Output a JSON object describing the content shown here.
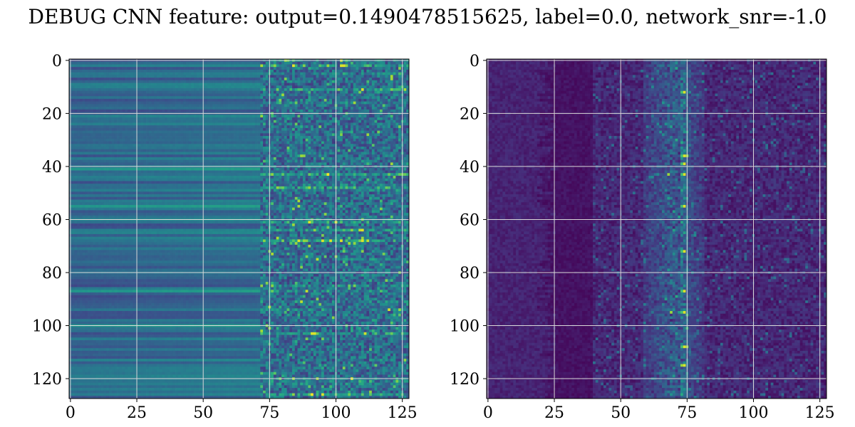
{
  "title": "DEBUG CNN feature: output=0.1490478515625, label=0.0, network_snr=-1.0",
  "chart_data": [
    {
      "type": "heatmap",
      "name": "panel-left",
      "rows": 128,
      "cols": 128,
      "colormap": "viridis",
      "xlim": [
        0,
        127
      ],
      "ylim": [
        127,
        0
      ],
      "x_ticks": [
        0,
        25,
        50,
        75,
        100,
        125
      ],
      "y_ticks": [
        0,
        20,
        40,
        60,
        80,
        100,
        120
      ],
      "x_tick_labels": [
        "0",
        "25",
        "50",
        "75",
        "100",
        "125"
      ],
      "y_tick_labels": [
        "0",
        "20",
        "40",
        "60",
        "80",
        "100",
        "120"
      ],
      "grid": true,
      "description_values": {
        "left_region_cols_0_70": "horizontal bands, mostly mid-blue/teal (~0.25-0.45)",
        "right_region_cols_75_127": "noisy, bright speckles up to yellow (~1.0)",
        "bright_rows": [
          2,
          11,
          43,
          48,
          61,
          64,
          68,
          103,
          126
        ]
      }
    },
    {
      "type": "heatmap",
      "name": "panel-right",
      "rows": 128,
      "cols": 128,
      "colormap": "viridis",
      "xlim": [
        0,
        127
      ],
      "ylim": [
        127,
        0
      ],
      "x_ticks": [
        0,
        25,
        50,
        75,
        100,
        125
      ],
      "y_ticks": [
        0,
        20,
        40,
        60,
        80,
        100,
        120
      ],
      "x_tick_labels": [
        "0",
        "25",
        "50",
        "75",
        "100",
        "125"
      ],
      "y_tick_labels": [
        "0",
        "20",
        "40",
        "60",
        "80",
        "100",
        "120"
      ],
      "grid": true,
      "description_values": {
        "background": "dark purple (~0.0-0.1)",
        "bright_column_band": [
          60,
          80
        ],
        "peak_column": 74,
        "bright_rows": [
          12,
          36,
          39,
          43,
          55,
          72,
          87,
          95,
          108,
          115
        ]
      }
    }
  ]
}
